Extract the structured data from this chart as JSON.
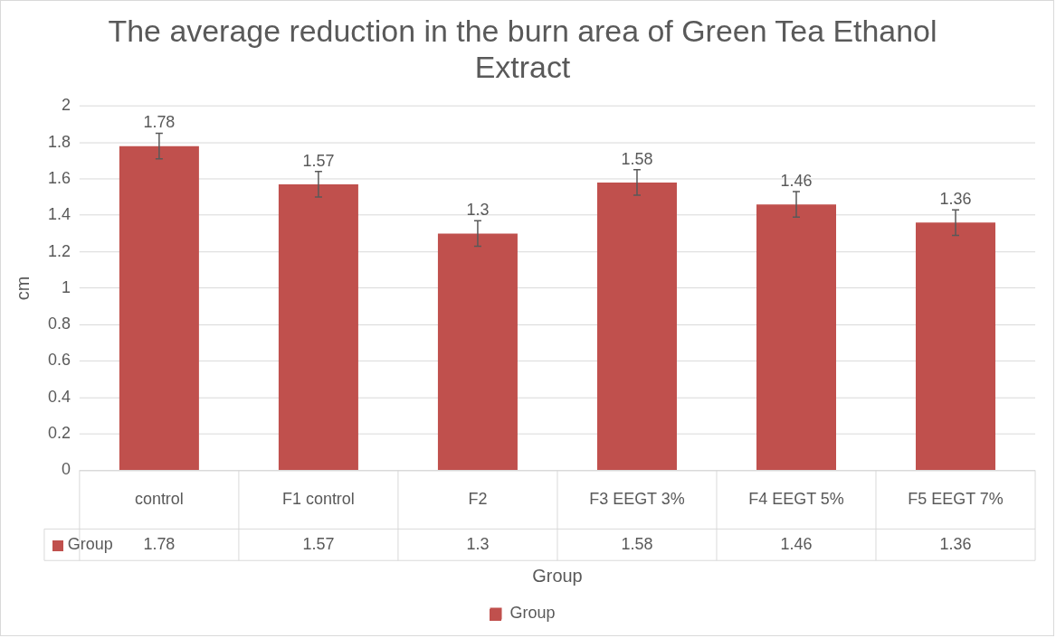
{
  "chart_data": {
    "type": "bar",
    "title": "The average reduction in the burn area of Green Tea Ethanol Extract",
    "xlabel": "Group",
    "ylabel": "cm",
    "categories": [
      "control",
      "F1 control",
      "F2",
      "F3 EEGT 3%",
      "F4 EEGT 5%",
      "F5 EEGT 7%"
    ],
    "series": [
      {
        "name": "Group",
        "color": "#c0504d",
        "values": [
          1.78,
          1.57,
          1.3,
          1.58,
          1.46,
          1.36
        ],
        "value_labels": [
          "1.78",
          "1.57",
          "1.3",
          "1.58",
          "1.46",
          "1.36"
        ],
        "errors": [
          0.07,
          0.07,
          0.07,
          0.07,
          0.07,
          0.07
        ]
      }
    ],
    "ylim": [
      0,
      2
    ],
    "yticks": [
      0,
      0.2,
      0.4,
      0.6,
      0.8,
      {
        "value": 1,
        "label": "1"
      },
      1.2,
      1.4,
      1.6,
      1.8,
      {
        "value": 2,
        "label": "2"
      }
    ],
    "grid": "y",
    "legend": "bottom",
    "annotations": [
      "1.78",
      "1.57",
      "1.3",
      "1.58",
      "1.46",
      "1.36"
    ]
  }
}
